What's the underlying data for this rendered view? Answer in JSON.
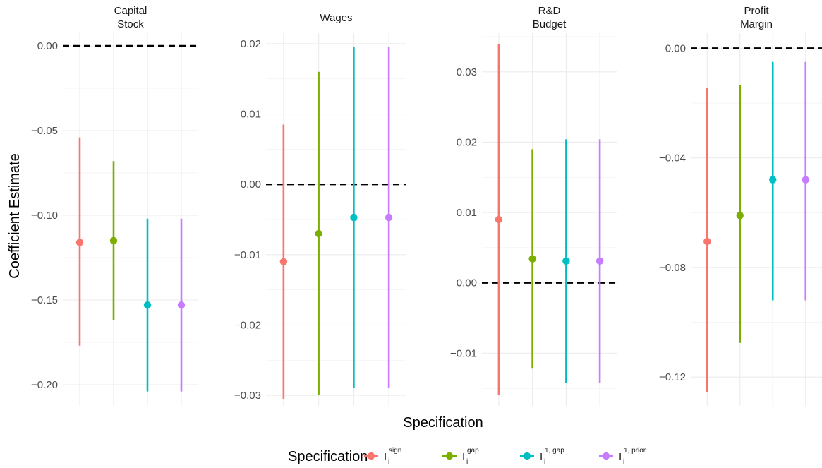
{
  "chart_data": {
    "type": "scatter",
    "subtype": "point-range facets",
    "xlabel": "Specification",
    "ylabel": "Coefficient Estimate",
    "reference_line": 0,
    "grid": true,
    "legend": {
      "title": "Specification",
      "placement": "bottom",
      "entries": [
        {
          "main": "I",
          "sub": "i",
          "sup": "sign",
          "color": "#F8766D"
        },
        {
          "main": "I",
          "sub": "i",
          "sup": "gap",
          "color": "#7CAE00"
        },
        {
          "main": "I",
          "sub": "i",
          "sup": "1, gap",
          "color": "#00BFC4"
        },
        {
          "main": "I",
          "sub": "i",
          "sup": "1, prior",
          "color": "#C77CFF"
        }
      ]
    },
    "panels": [
      {
        "title_lines": [
          "Capital",
          "Stock"
        ],
        "ylim": [
          -0.2125,
          0.0075
        ],
        "ticks": [
          0.0,
          -0.05,
          -0.1,
          -0.15,
          -0.2
        ],
        "tick_labels": [
          "0.00",
          "−0.05",
          "−0.10",
          "−0.15",
          "−0.20"
        ],
        "points": [
          {
            "estimate": -0.116,
            "low": -0.177,
            "high": -0.054
          },
          {
            "estimate": -0.115,
            "low": -0.162,
            "high": -0.068
          },
          {
            "estimate": -0.153,
            "low": -0.204,
            "high": -0.102
          },
          {
            "estimate": -0.153,
            "low": -0.204,
            "high": -0.102
          }
        ]
      },
      {
        "title_lines": [
          "Wages"
        ],
        "ylim": [
          -0.0315,
          0.0215
        ],
        "ticks": [
          0.02,
          0.01,
          0.0,
          -0.01,
          -0.02,
          -0.03
        ],
        "tick_labels": [
          "0.02",
          "0.01",
          "0.00",
          "−0.01",
          "−0.02",
          "−0.03"
        ],
        "points": [
          {
            "estimate": -0.011,
            "low": -0.0305,
            "high": 0.0085
          },
          {
            "estimate": -0.007,
            "low": -0.03,
            "high": 0.016
          },
          {
            "estimate": -0.0047,
            "low": -0.0289,
            "high": 0.0195
          },
          {
            "estimate": -0.0047,
            "low": -0.0289,
            "high": 0.0195
          }
        ]
      },
      {
        "title_lines": [
          "R&D",
          "Budget"
        ],
        "ylim": [
          -0.0175,
          0.0355
        ],
        "ticks": [
          0.03,
          0.02,
          0.01,
          0.0,
          -0.01
        ],
        "tick_labels": [
          "0.03",
          "0.02",
          "0.01",
          "0.00",
          "−0.01"
        ],
        "points": [
          {
            "estimate": 0.009,
            "low": -0.016,
            "high": 0.034
          },
          {
            "estimate": 0.0034,
            "low": -0.0122,
            "high": 0.019
          },
          {
            "estimate": 0.0031,
            "low": -0.0142,
            "high": 0.0204
          },
          {
            "estimate": 0.0031,
            "low": -0.0142,
            "high": 0.0204
          }
        ]
      },
      {
        "title_lines": [
          "Profit",
          "Margin"
        ],
        "ylim": [
          -0.1305,
          0.0055
        ],
        "ticks": [
          0.0,
          -0.04,
          -0.08,
          -0.12
        ],
        "tick_labels": [
          "0.00",
          "−0.04",
          "−0.08",
          "−0.12"
        ],
        "points": [
          {
            "estimate": -0.0705,
            "low": -0.1255,
            "high": -0.0145
          },
          {
            "estimate": -0.061,
            "low": -0.1075,
            "high": -0.0135
          },
          {
            "estimate": -0.048,
            "low": -0.092,
            "high": -0.005
          },
          {
            "estimate": -0.048,
            "low": -0.092,
            "high": -0.005
          }
        ]
      }
    ]
  }
}
